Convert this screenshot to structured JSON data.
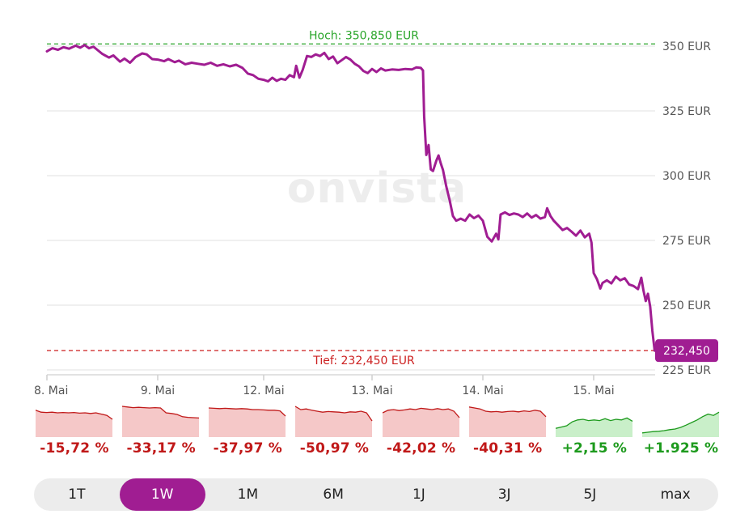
{
  "chart_data": {
    "type": "line",
    "y_unit_suffix": " EUR",
    "ylim": [
      220,
      353
    ],
    "y_ticks": [
      {
        "value": 350,
        "label": "350 EUR"
      },
      {
        "value": 325,
        "label": "325 EUR"
      },
      {
        "value": 300,
        "label": "300 EUR"
      },
      {
        "value": 275,
        "label": "275 EUR"
      },
      {
        "value": 250,
        "label": "250 EUR"
      },
      {
        "value": 225,
        "label": "225 EUR"
      }
    ],
    "x_ticks": [
      {
        "value": 0,
        "label": "8. Mai"
      },
      {
        "value": 1,
        "label": "9. Mai"
      },
      {
        "value": 2,
        "label": "12. Mai"
      },
      {
        "value": 3,
        "label": "13. Mai"
      },
      {
        "value": 4,
        "label": "14. Mai"
      },
      {
        "value": 5,
        "label": "15. Mai"
      }
    ],
    "xlim": [
      0,
      5.55
    ],
    "high": {
      "value": 350.85,
      "label": "Hoch: 350,850 EUR"
    },
    "low": {
      "value": 232.45,
      "label": "Tief: 232,450 EUR"
    },
    "last": {
      "value": 232.45,
      "label": "232,450"
    },
    "series": [
      {
        "color": "#a01d92",
        "points": [
          [
            0.0,
            348.0
          ],
          [
            0.05,
            349.2
          ],
          [
            0.1,
            348.6
          ],
          [
            0.15,
            349.6
          ],
          [
            0.2,
            349.0
          ],
          [
            0.26,
            350.2
          ],
          [
            0.3,
            349.4
          ],
          [
            0.34,
            350.4
          ],
          [
            0.38,
            349.2
          ],
          [
            0.42,
            349.8
          ],
          [
            0.46,
            348.4
          ],
          [
            0.5,
            347.0
          ],
          [
            0.56,
            345.6
          ],
          [
            0.6,
            346.4
          ],
          [
            0.66,
            344.0
          ],
          [
            0.7,
            345.2
          ],
          [
            0.75,
            343.6
          ],
          [
            0.8,
            345.8
          ],
          [
            0.86,
            347.2
          ],
          [
            0.9,
            346.8
          ],
          [
            0.95,
            345.0
          ],
          [
            1.0,
            344.8
          ],
          [
            1.06,
            344.2
          ],
          [
            1.1,
            345.0
          ],
          [
            1.16,
            343.8
          ],
          [
            1.2,
            344.4
          ],
          [
            1.26,
            343.0
          ],
          [
            1.32,
            343.6
          ],
          [
            1.38,
            343.2
          ],
          [
            1.44,
            342.8
          ],
          [
            1.5,
            343.6
          ],
          [
            1.56,
            342.4
          ],
          [
            1.62,
            343.0
          ],
          [
            1.68,
            342.2
          ],
          [
            1.74,
            342.8
          ],
          [
            1.8,
            341.6
          ],
          [
            1.85,
            339.4
          ],
          [
            1.9,
            338.8
          ],
          [
            1.95,
            337.4
          ],
          [
            2.0,
            337.0
          ],
          [
            2.04,
            336.4
          ],
          [
            2.08,
            337.8
          ],
          [
            2.12,
            336.6
          ],
          [
            2.16,
            337.4
          ],
          [
            2.2,
            337.0
          ],
          [
            2.24,
            338.8
          ],
          [
            2.28,
            338.0
          ],
          [
            2.3,
            342.4
          ],
          [
            2.33,
            337.8
          ],
          [
            2.36,
            340.8
          ],
          [
            2.4,
            346.2
          ],
          [
            2.44,
            345.8
          ],
          [
            2.48,
            346.8
          ],
          [
            2.52,
            346.2
          ],
          [
            2.56,
            347.4
          ],
          [
            2.6,
            345.0
          ],
          [
            2.64,
            346.0
          ],
          [
            2.68,
            343.4
          ],
          [
            2.72,
            344.6
          ],
          [
            2.76,
            345.8
          ],
          [
            2.8,
            344.8
          ],
          [
            2.84,
            343.2
          ],
          [
            2.88,
            342.2
          ],
          [
            2.92,
            340.4
          ],
          [
            2.96,
            339.6
          ],
          [
            3.0,
            341.2
          ],
          [
            3.04,
            340.0
          ],
          [
            3.08,
            341.4
          ],
          [
            3.12,
            340.6
          ],
          [
            3.18,
            341.0
          ],
          [
            3.24,
            340.8
          ],
          [
            3.3,
            341.2
          ],
          [
            3.36,
            341.0
          ],
          [
            3.4,
            341.8
          ],
          [
            3.44,
            341.6
          ],
          [
            3.46,
            340.6
          ],
          [
            3.47,
            323.0
          ],
          [
            3.49,
            308.0
          ],
          [
            3.51,
            311.8
          ],
          [
            3.53,
            302.4
          ],
          [
            3.55,
            301.8
          ],
          [
            3.58,
            305.8
          ],
          [
            3.6,
            307.8
          ],
          [
            3.62,
            304.8
          ],
          [
            3.64,
            302.2
          ],
          [
            3.67,
            295.8
          ],
          [
            3.7,
            290.6
          ],
          [
            3.73,
            284.4
          ],
          [
            3.76,
            282.6
          ],
          [
            3.8,
            283.4
          ],
          [
            3.84,
            282.6
          ],
          [
            3.88,
            285.0
          ],
          [
            3.92,
            283.6
          ],
          [
            3.96,
            284.6
          ],
          [
            4.0,
            282.6
          ],
          [
            4.04,
            276.4
          ],
          [
            4.08,
            274.6
          ],
          [
            4.12,
            277.6
          ],
          [
            4.14,
            275.4
          ],
          [
            4.16,
            285.0
          ],
          [
            4.2,
            285.8
          ],
          [
            4.24,
            284.8
          ],
          [
            4.28,
            285.4
          ],
          [
            4.32,
            285.0
          ],
          [
            4.36,
            284.0
          ],
          [
            4.4,
            285.4
          ],
          [
            4.44,
            283.8
          ],
          [
            4.48,
            284.8
          ],
          [
            4.52,
            283.4
          ],
          [
            4.56,
            284.0
          ],
          [
            4.58,
            287.4
          ],
          [
            4.61,
            284.4
          ],
          [
            4.64,
            282.6
          ],
          [
            4.68,
            280.8
          ],
          [
            4.72,
            279.0
          ],
          [
            4.76,
            279.8
          ],
          [
            4.8,
            278.4
          ],
          [
            4.84,
            276.8
          ],
          [
            4.88,
            278.8
          ],
          [
            4.92,
            276.2
          ],
          [
            4.96,
            277.6
          ],
          [
            4.98,
            274.2
          ],
          [
            5.0,
            262.4
          ],
          [
            5.03,
            260.0
          ],
          [
            5.06,
            256.4
          ],
          [
            5.08,
            258.6
          ],
          [
            5.12,
            259.6
          ],
          [
            5.16,
            258.4
          ],
          [
            5.2,
            261.0
          ],
          [
            5.24,
            259.6
          ],
          [
            5.28,
            260.4
          ],
          [
            5.32,
            258.0
          ],
          [
            5.36,
            257.4
          ],
          [
            5.4,
            256.2
          ],
          [
            5.43,
            260.6
          ],
          [
            5.45,
            255.6
          ],
          [
            5.47,
            251.6
          ],
          [
            5.49,
            254.4
          ],
          [
            5.51,
            249.4
          ],
          [
            5.53,
            240.0
          ],
          [
            5.55,
            232.45
          ]
        ]
      }
    ]
  },
  "mini_charts": [
    {
      "label": "-15,72 %",
      "trend": "down",
      "values": [
        78,
        72,
        71,
        72,
        70,
        71,
        70,
        71,
        69,
        70,
        68,
        70,
        66,
        62,
        50
      ],
      "color": "#c01818",
      "fill": "#f5c8c8"
    },
    {
      "label": "-33,17 %",
      "trend": "down",
      "values": [
        90,
        88,
        86,
        87,
        86,
        85,
        86,
        85,
        70,
        68,
        65,
        58,
        56,
        55,
        54
      ],
      "color": "#c01818",
      "fill": "#f5c8c8"
    },
    {
      "label": "-37,97 %",
      "trend": "down",
      "values": [
        85,
        84,
        83,
        84,
        83,
        82,
        83,
        82,
        80,
        80,
        79,
        78,
        78,
        76,
        60
      ],
      "color": "#c01818",
      "fill": "#f5c8c8"
    },
    {
      "label": "-50,97 %",
      "trend": "down",
      "values": [
        90,
        80,
        82,
        78,
        75,
        72,
        74,
        73,
        72,
        70,
        73,
        72,
        75,
        70,
        45
      ],
      "color": "#c01818",
      "fill": "#f5c8c8"
    },
    {
      "label": "-42,02 %",
      "trend": "down",
      "values": [
        70,
        78,
        80,
        77,
        79,
        82,
        80,
        84,
        82,
        80,
        83,
        80,
        82,
        75,
        55
      ],
      "color": "#c01818",
      "fill": "#f5c8c8"
    },
    {
      "label": "-40,31 %",
      "trend": "down",
      "values": [
        88,
        85,
        82,
        75,
        73,
        74,
        72,
        74,
        75,
        73,
        76,
        74,
        78,
        75,
        58
      ],
      "color": "#c01818",
      "fill": "#f5c8c8"
    },
    {
      "label": "+2,15 %",
      "trend": "up",
      "values": [
        22,
        26,
        30,
        42,
        48,
        50,
        46,
        48,
        46,
        52,
        46,
        50,
        48,
        54,
        44
      ],
      "color": "#1d9a1d",
      "fill": "#c9efc9"
    },
    {
      "label": "+1.925 %",
      "trend": "up",
      "values": [
        8,
        10,
        12,
        13,
        15,
        18,
        20,
        25,
        32,
        40,
        48,
        58,
        66,
        62,
        72
      ],
      "color": "#1d9a1d",
      "fill": "#c9efc9"
    }
  ],
  "tabs": [
    {
      "label": "1T",
      "active": false
    },
    {
      "label": "1W",
      "active": true
    },
    {
      "label": "1M",
      "active": false
    },
    {
      "label": "6M",
      "active": false
    },
    {
      "label": "1J",
      "active": false
    },
    {
      "label": "3J",
      "active": false
    },
    {
      "label": "5J",
      "active": false
    },
    {
      "label": "max",
      "active": false
    }
  ],
  "watermark": "onvista"
}
